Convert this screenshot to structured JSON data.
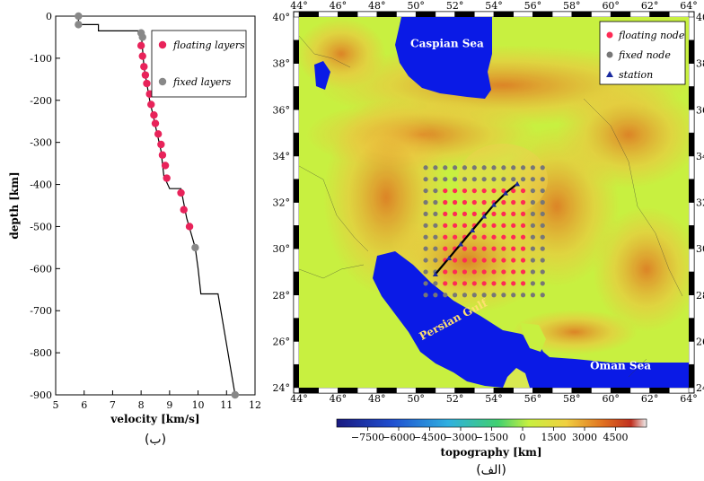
{
  "profile": {
    "xlabel": "velocity [km/s]",
    "ylabel": "depth [km]",
    "caption": "(ب)",
    "xlim": [
      5,
      12
    ],
    "ylim": [
      -900,
      0
    ],
    "xticks": [
      5,
      6,
      7,
      8,
      9,
      10,
      11,
      12
    ],
    "yticks": [
      0,
      -100,
      -200,
      -300,
      -400,
      -500,
      -600,
      -700,
      -800,
      -900
    ],
    "legend": [
      "floating layers",
      "fixed layers"
    ],
    "colors": {
      "floating": "#e8235a",
      "fixed": "#888888"
    },
    "model_line": [
      [
        5.8,
        0
      ],
      [
        5.8,
        -20
      ],
      [
        6.5,
        -20
      ],
      [
        6.5,
        -35
      ],
      [
        8.0,
        -35
      ],
      [
        8.1,
        -120
      ],
      [
        8.3,
        -200
      ],
      [
        8.5,
        -260
      ],
      [
        8.7,
        -320
      ],
      [
        8.8,
        -380
      ],
      [
        9.0,
        -410
      ],
      [
        9.4,
        -410
      ],
      [
        9.6,
        -480
      ],
      [
        9.9,
        -550
      ],
      [
        10.0,
        -600
      ],
      [
        10.1,
        -660
      ],
      [
        10.7,
        -660
      ],
      [
        11.0,
        -780
      ],
      [
        11.3,
        -900
      ]
    ],
    "fixed_points": [
      [
        5.8,
        0
      ],
      [
        5.8,
        -20
      ],
      [
        8.0,
        -40
      ],
      [
        8.05,
        -50
      ],
      [
        9.9,
        -550
      ],
      [
        11.3,
        -900
      ]
    ],
    "floating_points": [
      [
        8.0,
        -70
      ],
      [
        8.05,
        -95
      ],
      [
        8.1,
        -120
      ],
      [
        8.15,
        -140
      ],
      [
        8.2,
        -160
      ],
      [
        8.3,
        -185
      ],
      [
        8.35,
        -210
      ],
      [
        8.45,
        -235
      ],
      [
        8.5,
        -255
      ],
      [
        8.6,
        -280
      ],
      [
        8.7,
        -305
      ],
      [
        8.75,
        -330
      ],
      [
        8.85,
        -355
      ],
      [
        8.9,
        -385
      ],
      [
        9.4,
        -420
      ],
      [
        9.5,
        -460
      ],
      [
        9.7,
        -500
      ]
    ]
  },
  "map": {
    "xlabel": "topography [km]",
    "caption": "(الف)",
    "lon_range": [
      44,
      64
    ],
    "lat_range": [
      24,
      40
    ],
    "lon_ticks": [
      44,
      46,
      48,
      50,
      52,
      54,
      56,
      58,
      60,
      62,
      64
    ],
    "lat_ticks": [
      24,
      26,
      28,
      30,
      32,
      34,
      36,
      38,
      40
    ],
    "seas": [
      {
        "name": "Caspian Sea",
        "lon": 51.6,
        "lat": 38.7,
        "color": "#ffffff"
      },
      {
        "name": "Persian Gulf",
        "lon": 52.0,
        "lat": 26.8,
        "color": "#ffe070"
      },
      {
        "name": "Oman Sea",
        "lon": 60.5,
        "lat": 24.8,
        "color": "#ffffff"
      }
    ],
    "legend": [
      "floating node",
      "fixed node",
      "station"
    ],
    "colors": {
      "floating": "#ff2a55",
      "fixed": "#777777",
      "station": "#1a2aa0",
      "water": "#0a1ae6",
      "land": "#c8f040"
    },
    "grid": {
      "lon_start": 50.5,
      "lon_end": 56.5,
      "lat_start": 28.0,
      "lat_end": 33.5,
      "step": 0.5,
      "float_lon": [
        51.5,
        55.5
      ],
      "float_lat": [
        28.5,
        32.5
      ]
    },
    "stations": [
      [
        51.0,
        28.9
      ],
      [
        51.7,
        29.6
      ],
      [
        52.3,
        30.2
      ],
      [
        52.9,
        30.8
      ],
      [
        53.5,
        31.4
      ],
      [
        54.0,
        31.9
      ],
      [
        54.6,
        32.4
      ],
      [
        55.2,
        32.8
      ]
    ],
    "colorbar_ticks": [
      -7500,
      -6000,
      -4500,
      -3000,
      -1500,
      0,
      1500,
      3000,
      4500
    ],
    "colorbar_range": [
      -9000,
      6000
    ]
  }
}
